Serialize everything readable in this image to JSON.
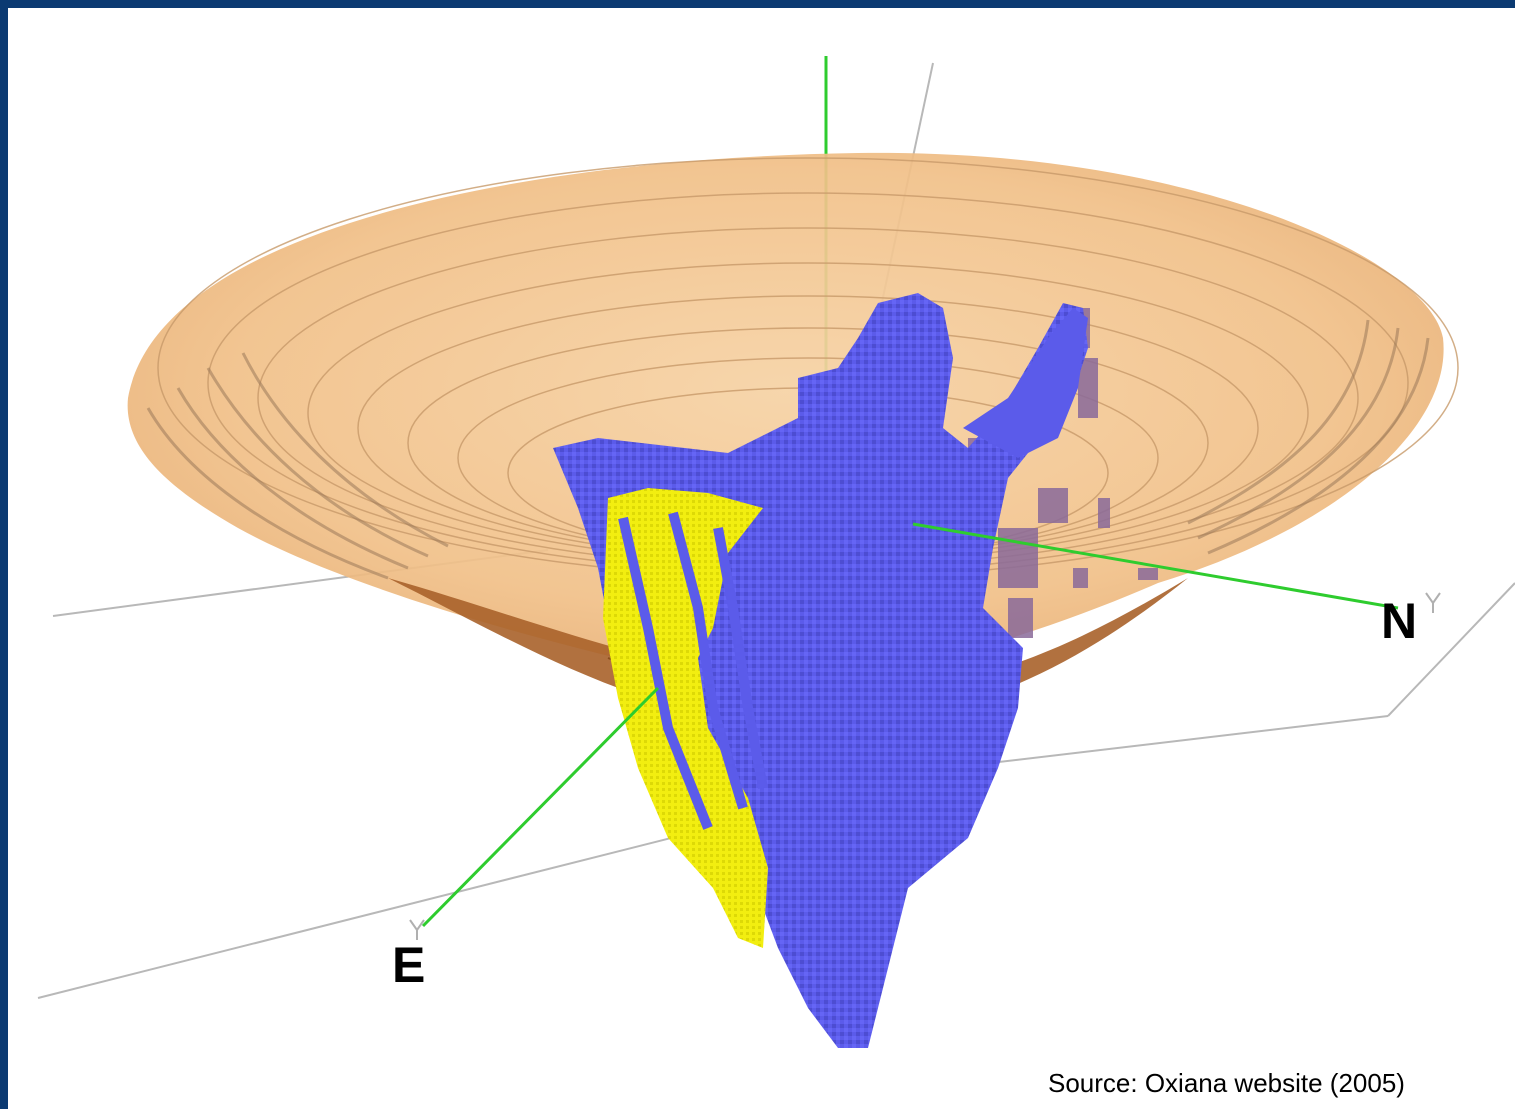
{
  "labels": {
    "north": "N",
    "east": "E",
    "source": "Source: Oxiana website (2005)"
  },
  "colors": {
    "frame_border": "#0b3a72",
    "pit_shell": "#f2c08a",
    "pit_floor": "#a8622a",
    "ore_body": "#5a5ae6",
    "high_grade_zone": "#f2ee10",
    "secondary_ore": "#8a6a9a",
    "axis": "#2ecc2e",
    "bounding_box": "#b0b0b0"
  },
  "icons": {
    "axis_markers": "y-axis-tick-icon"
  }
}
